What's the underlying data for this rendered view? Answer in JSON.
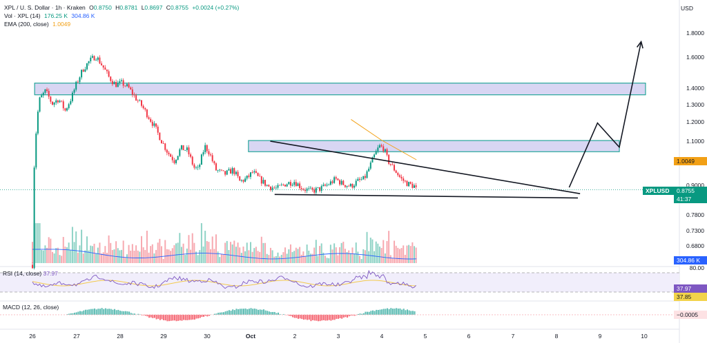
{
  "header": {
    "title_line": "XPL / U. S. Dollar · 1h · Kraken",
    "ohlc": {
      "o_label": "O",
      "o": "0.8750",
      "h_label": "H",
      "h": "0.8781",
      "l_label": "L",
      "l": "0.8697",
      "c_label": "C",
      "c": "0.8755",
      "change": "+0.0024 (+0.27%)"
    },
    "vol_label": "Vol · XPL (14)",
    "vol_value_1": "176.25 K",
    "vol_value_2": "304.86 K",
    "ema_label": "EMA (200, close)",
    "ema_value": "1.0049"
  },
  "currency": "USD",
  "price_axis": {
    "ticks": [
      "1.8000",
      "1.6000",
      "1.4000",
      "1.3000",
      "1.2000",
      "1.1000",
      "0.9000",
      "0.7800",
      "0.7300",
      "0.6800"
    ]
  },
  "tags": {
    "ema": "1.0049",
    "symbol": "XPLUSD",
    "last_price": "0.8755",
    "countdown": "41:37",
    "volume": "304.86 K",
    "rsi_upper": "80.00",
    "rsi_value": "37.97",
    "rsi_ma": "37.85",
    "macd": "−0.0005"
  },
  "rsi": {
    "label": "RSI (14, close)",
    "value": "37.97"
  },
  "macd": {
    "label": "MACD (12, 26, close)"
  },
  "time_axis": {
    "labels": [
      "26",
      "27",
      "28",
      "29",
      "30",
      "Oct",
      "2",
      "3",
      "4",
      "5",
      "6",
      "7",
      "8",
      "9",
      "10"
    ]
  },
  "colors": {
    "up": "#089981",
    "down": "#f23645",
    "zone_fill": "#d8d6f3",
    "zone_border": "#26a69a",
    "ema": "#f2a015",
    "volume_ma": "#2962ff",
    "rsi": "#7e57c2"
  },
  "chart_data": {
    "type": "candlestick",
    "title": "XPL / U. S. Dollar · 1h · Kraken",
    "y_scale": "log",
    "ylim": [
      0.655,
      1.95
    ],
    "x": [
      "26",
      "27",
      "28",
      "29",
      "30",
      "Oct",
      "2",
      "3",
      "4",
      "5",
      "6",
      "7",
      "8",
      "9",
      "10"
    ],
    "price_path": [
      [
        0,
        0.62
      ],
      [
        0.05,
        1.05
      ],
      [
        0.15,
        1.32
      ],
      [
        0.3,
        1.38
      ],
      [
        0.45,
        1.3
      ],
      [
        0.6,
        1.33
      ],
      [
        0.75,
        1.26
      ],
      [
        0.9,
        1.34
      ],
      [
        1.0,
        1.42
      ],
      [
        1.15,
        1.52
      ],
      [
        1.3,
        1.58
      ],
      [
        1.45,
        1.62
      ],
      [
        1.6,
        1.55
      ],
      [
        1.75,
        1.47
      ],
      [
        1.9,
        1.42
      ],
      [
        2.05,
        1.43
      ],
      [
        2.2,
        1.4
      ],
      [
        2.35,
        1.34
      ],
      [
        2.5,
        1.29
      ],
      [
        2.65,
        1.23
      ],
      [
        2.8,
        1.17
      ],
      [
        2.95,
        1.1
      ],
      [
        3.1,
        1.04
      ],
      [
        3.25,
        1.0
      ],
      [
        3.4,
        1.06
      ],
      [
        3.55,
        1.05
      ],
      [
        3.7,
        0.97
      ],
      [
        3.8,
        0.96
      ],
      [
        3.95,
        1.07
      ],
      [
        4.05,
        1.04
      ],
      [
        4.2,
        0.96
      ],
      [
        4.4,
        0.94
      ],
      [
        4.6,
        0.96
      ],
      [
        4.75,
        0.91
      ],
      [
        4.9,
        0.92
      ],
      [
        5.05,
        0.95
      ],
      [
        5.2,
        0.92
      ],
      [
        5.4,
        0.89
      ],
      [
        5.6,
        0.88
      ],
      [
        5.8,
        0.9
      ],
      [
        6.0,
        0.91
      ],
      [
        6.2,
        0.88
      ],
      [
        6.4,
        0.87
      ],
      [
        6.6,
        0.88
      ],
      [
        6.8,
        0.9
      ],
      [
        6.95,
        0.92
      ],
      [
        7.1,
        0.9
      ],
      [
        7.3,
        0.89
      ],
      [
        7.45,
        0.91
      ],
      [
        7.6,
        0.92
      ],
      [
        7.7,
        0.96
      ],
      [
        7.85,
        1.03
      ],
      [
        7.95,
        1.07
      ],
      [
        8.05,
        1.06
      ],
      [
        8.15,
        1.0
      ],
      [
        8.3,
        0.96
      ],
      [
        8.45,
        0.92
      ],
      [
        8.6,
        0.9
      ],
      [
        8.75,
        0.89
      ],
      [
        8.8,
        0.8755
      ]
    ],
    "ema200": [
      [
        7.3,
        1.21
      ],
      [
        8.0,
        1.1
      ],
      [
        8.8,
        1.0049
      ]
    ],
    "resistance_zones": [
      {
        "x": [
          0.05,
          14.05
        ],
        "y": [
          1.355,
          1.43
        ]
      },
      {
        "x": [
          4.95,
          13.45
        ],
        "y": [
          1.043,
          1.098
        ]
      }
    ],
    "wedge_upper": [
      [
        5.45,
        1.095
      ],
      [
        12.55,
        0.86
      ]
    ],
    "wedge_lower": [
      [
        5.55,
        0.857
      ],
      [
        12.5,
        0.843
      ]
    ],
    "projection": [
      [
        12.3,
        0.885
      ],
      [
        12.95,
        1.19
      ],
      [
        13.45,
        1.065
      ],
      [
        13.95,
        1.73
      ]
    ],
    "last_price": 0.8755,
    "ema_last": 1.0049
  }
}
